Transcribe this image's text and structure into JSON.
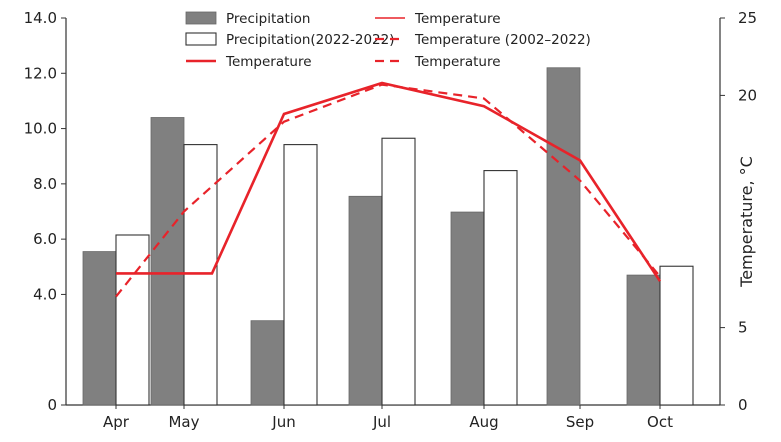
{
  "chart_data": {
    "type": "bar",
    "categories": [
      "Apr",
      "May",
      "Jun",
      "Jul",
      "Aug",
      "Sep",
      "Oct"
    ],
    "series": [
      {
        "name": "Precipitation",
        "kind": "bar",
        "color": "#808080",
        "values": [
          5.55,
          10.4,
          3.05,
          7.55,
          6.98,
          12.2,
          4.7
        ]
      },
      {
        "name": "Precipitation(2022-2022)",
        "kind": "bar",
        "color": "#ffffff",
        "values": [
          6.15,
          9.42,
          9.42,
          9.65,
          8.48,
          null,
          5.02
        ]
      },
      {
        "name": "Temperature",
        "kind": "line",
        "axis": "right",
        "color": "#e8232a",
        "dash": "solid",
        "x": [
          0,
          1.28,
          2,
          3,
          4,
          5,
          6
        ],
        "values": [
          8.5,
          8.5,
          18.8,
          20.8,
          19.3,
          15.8,
          8.0
        ]
      },
      {
        "name": "Temperature (2002–2022)",
        "kind": "line",
        "axis": "right",
        "color": "#e8232a",
        "dash": "dashed",
        "x": [
          0,
          1,
          2,
          3,
          4,
          5,
          6
        ],
        "values": [
          7.0,
          12.5,
          18.3,
          20.7,
          19.8,
          14.5,
          8.3
        ]
      }
    ],
    "legend": {
      "col1": [
        "Precipitation",
        "Precipitation(2022-2022)",
        "Temperature"
      ],
      "col2": [
        "Temperature",
        "Temperature (2002–2022)",
        "Temperature"
      ],
      "placement": "top"
    },
    "yleft": {
      "ylim": [
        0,
        14
      ],
      "ticks": [
        "0",
        "4.0",
        "6.0",
        "8.0",
        "10.0",
        "12.0",
        "14.0"
      ],
      "tick_values": [
        0,
        4,
        6,
        8,
        10,
        12,
        14
      ]
    },
    "yright": {
      "ylim": [
        0,
        25
      ],
      "ticks": [
        "0",
        "5",
        "20",
        "25"
      ],
      "tick_values": [
        0,
        5,
        20,
        25
      ],
      "label": "Temperature, °C"
    },
    "xlabel": "",
    "grid": false
  }
}
